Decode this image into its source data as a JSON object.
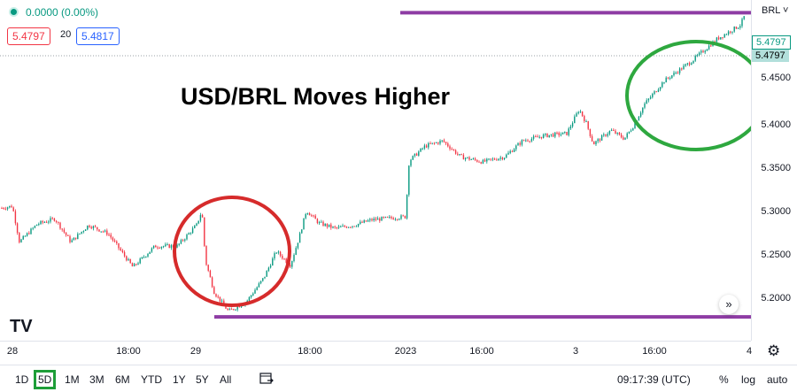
{
  "legend": {
    "change": "0.0000 (0.00%)",
    "bid": "5.4797",
    "spread": "20",
    "ask": "5.4817"
  },
  "title": "USD/BRL Moves Higher",
  "symbol_selector": "BRL ˅",
  "price_scale": {
    "ticks": [
      "5.4500",
      "5.4000",
      "5.3500",
      "5.3000",
      "5.2500",
      "5.2000"
    ],
    "last_price_green": "5.4797",
    "last_price_dark": "5.4797"
  },
  "time_axis": [
    "28",
    "18:00",
    "29",
    "18:00",
    "2023",
    "16:00",
    "3",
    "16:00",
    "4"
  ],
  "timeframes": [
    "1D",
    "5D",
    "1M",
    "3M",
    "6M",
    "YTD",
    "1Y",
    "5Y",
    "All"
  ],
  "selected_timeframe": "5D",
  "clock": "09:17:39 (UTC)",
  "scale_options": [
    "%",
    "log",
    "auto"
  ],
  "logo": "TV",
  "scroll_glyph": "»",
  "colors": {
    "up": "#089981",
    "down": "#f23645",
    "horizontal_lines": "#8e3ca4",
    "circle_red": "#d62b2b",
    "circle_green": "#2ea83f"
  },
  "chart_data": {
    "type": "candlestick",
    "ylim": [
      5.18,
      5.48
    ],
    "horizontal_levels": [
      5.4797,
      5.1908
    ],
    "path": [
      [
        0,
        5.294
      ],
      [
        14,
        5.296
      ],
      [
        22,
        5.262
      ],
      [
        42,
        5.279
      ],
      [
        62,
        5.284
      ],
      [
        80,
        5.262
      ],
      [
        100,
        5.278
      ],
      [
        122,
        5.27
      ],
      [
        150,
        5.238
      ],
      [
        175,
        5.258
      ],
      [
        200,
        5.258
      ],
      [
        222,
        5.278
      ],
      [
        228,
        5.292
      ],
      [
        232,
        5.244
      ],
      [
        242,
        5.214
      ],
      [
        258,
        5.196
      ],
      [
        278,
        5.205
      ],
      [
        298,
        5.228
      ],
      [
        312,
        5.253
      ],
      [
        328,
        5.24
      ],
      [
        338,
        5.267
      ],
      [
        346,
        5.292
      ],
      [
        360,
        5.28
      ],
      [
        378,
        5.275
      ],
      [
        400,
        5.278
      ],
      [
        420,
        5.283
      ],
      [
        458,
        5.286
      ],
      [
        462,
        5.339
      ],
      [
        480,
        5.353
      ],
      [
        500,
        5.358
      ],
      [
        520,
        5.343
      ],
      [
        545,
        5.338
      ],
      [
        570,
        5.343
      ],
      [
        590,
        5.358
      ],
      [
        615,
        5.363
      ],
      [
        640,
        5.365
      ],
      [
        654,
        5.388
      ],
      [
        662,
        5.375
      ],
      [
        670,
        5.355
      ],
      [
        690,
        5.368
      ],
      [
        705,
        5.36
      ],
      [
        715,
        5.372
      ],
      [
        728,
        5.393
      ],
      [
        750,
        5.415
      ],
      [
        780,
        5.433
      ],
      [
        810,
        5.455
      ],
      [
        836,
        5.468
      ],
      [
        842,
        5.479
      ]
    ]
  }
}
